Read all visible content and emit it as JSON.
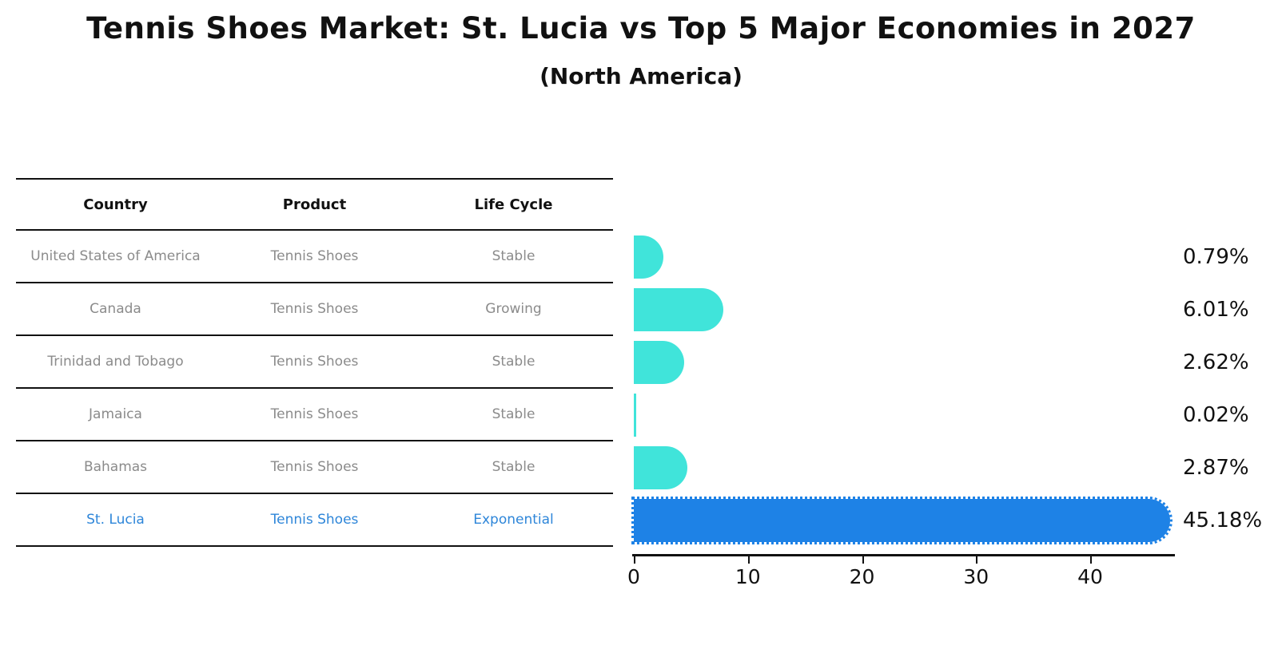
{
  "title": "Tennis Shoes Market: St. Lucia vs Top 5 Major Economies in 2027",
  "subtitle": "(North America)",
  "table": {
    "headers": [
      "Country",
      "Product",
      "Life Cycle"
    ],
    "rows": [
      {
        "country": "United States of America",
        "product": "Tennis Shoes",
        "life_cycle": "Stable",
        "highlight": false
      },
      {
        "country": "Canada",
        "product": "Tennis Shoes",
        "life_cycle": "Growing",
        "highlight": false
      },
      {
        "country": "Trinidad and Tobago",
        "product": "Tennis Shoes",
        "life_cycle": "Stable",
        "highlight": false
      },
      {
        "country": "Jamaica",
        "product": "Tennis Shoes",
        "life_cycle": "Stable",
        "highlight": false
      },
      {
        "country": "Bahamas",
        "product": "Tennis Shoes",
        "life_cycle": "Stable",
        "highlight": false
      },
      {
        "country": "St. Lucia",
        "product": "Tennis Shoes",
        "life_cycle": "Exponential",
        "highlight": true
      }
    ]
  },
  "chart_data": {
    "type": "bar",
    "orientation": "horizontal",
    "title": "Tennis Shoes Market: St. Lucia vs Top 5 Major Economies in 2027",
    "subtitle": "(North America)",
    "categories": [
      "United States of America",
      "Canada",
      "Trinidad and Tobago",
      "Jamaica",
      "Bahamas",
      "St. Lucia"
    ],
    "values": [
      0.79,
      6.01,
      2.62,
      0.02,
      2.87,
      45.18
    ],
    "value_labels": [
      "0.79%",
      "6.01%",
      "2.62%",
      "0.02%",
      "2.87%",
      "45.18%"
    ],
    "x_ticks": [
      "0",
      "10",
      "20",
      "30",
      "40"
    ],
    "x_tick_values": [
      0,
      10,
      20,
      30,
      40
    ],
    "xlim": [
      0,
      47.5
    ],
    "xlabel": "",
    "ylabel": "",
    "grid": false,
    "legend": "none",
    "highlight_index": 5,
    "highlight_style": "dotted-edge"
  },
  "colors": {
    "bar": "#40E4DA",
    "highlight_bar": "#1E82E6",
    "highlight_text": "#2e86d9",
    "table_text": "#8b8b8b",
    "heading_text": "#111111"
  }
}
